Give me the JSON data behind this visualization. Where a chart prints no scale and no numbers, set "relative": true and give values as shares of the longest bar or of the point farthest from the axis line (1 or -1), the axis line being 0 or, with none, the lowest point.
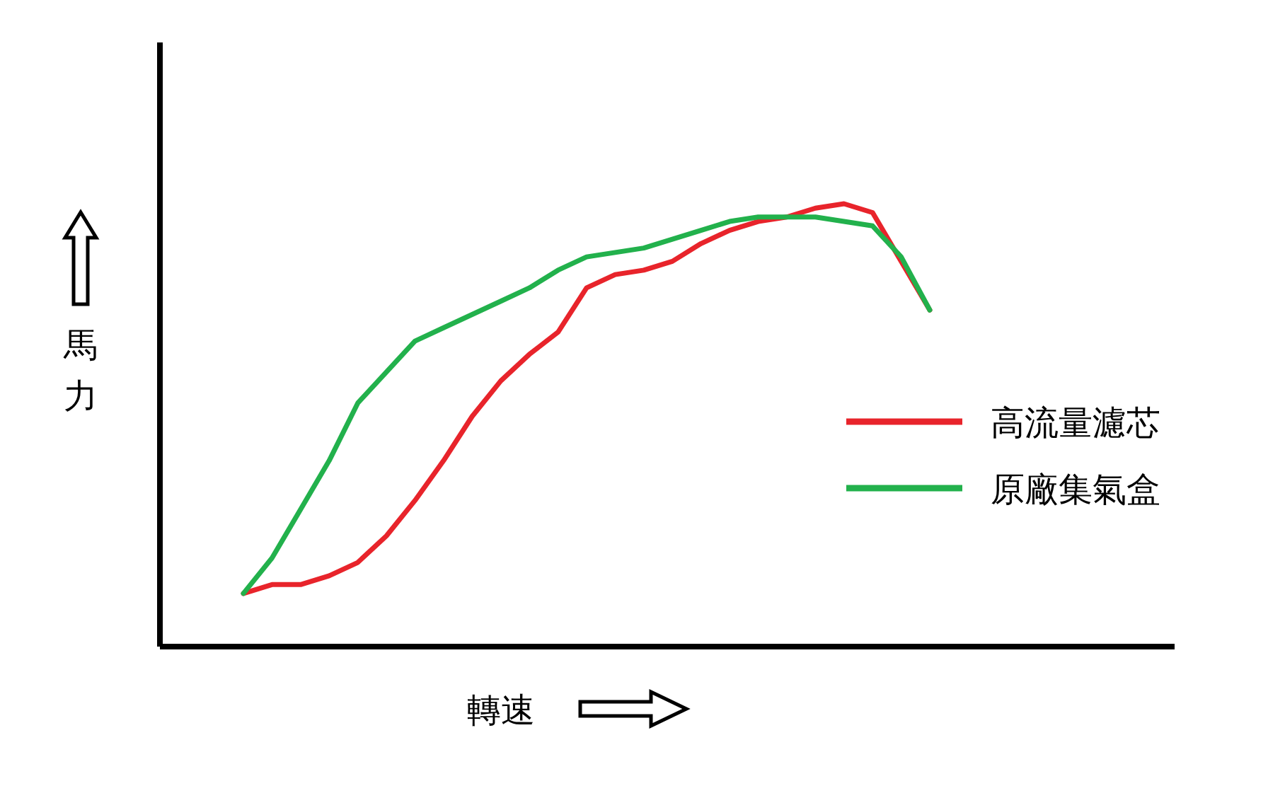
{
  "chart_data": {
    "type": "line",
    "relative": true,
    "xlabel": "轉速",
    "ylabel": "馬力",
    "categories": [
      null,
      null,
      null,
      null,
      null,
      null,
      null,
      null,
      null,
      null,
      null,
      null,
      null,
      null,
      null,
      null,
      null,
      null,
      null,
      null,
      null,
      null,
      null,
      null,
      null
    ],
    "series": [
      {
        "name": "高流量濾芯",
        "color": "#e8242b",
        "values": [
          0.12,
          0.14,
          0.14,
          0.16,
          0.19,
          0.25,
          0.33,
          0.42,
          0.52,
          0.6,
          0.66,
          0.71,
          0.81,
          0.84,
          0.85,
          0.87,
          0.91,
          0.94,
          0.96,
          0.97,
          0.99,
          1,
          0.98,
          0.87,
          0.76
        ]
      },
      {
        "name": "原廠集氣盒",
        "color": "#22b14c",
        "values": [
          0.12,
          0.2,
          0.31,
          0.42,
          0.55,
          0.62,
          0.69,
          0.72,
          0.75,
          0.78,
          0.81,
          0.85,
          0.88,
          0.89,
          0.9,
          0.92,
          0.94,
          0.96,
          0.97,
          0.97,
          0.97,
          0.96,
          0.95,
          0.88,
          0.76
        ]
      }
    ],
    "legend": "right",
    "grid": false,
    "marker": "none",
    "line_style": "solid"
  }
}
